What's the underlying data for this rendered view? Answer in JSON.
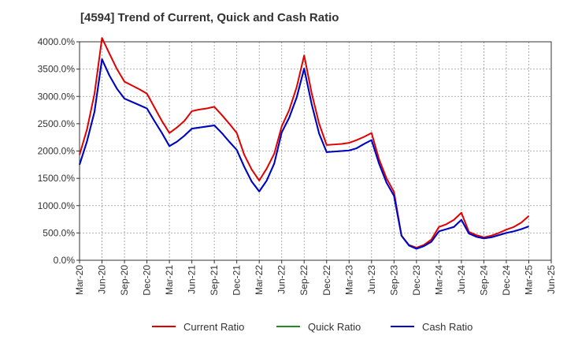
{
  "chart_data": {
    "type": "line",
    "title": "[4594]  Trend of Current, Quick and Cash Ratio",
    "xlabel": "",
    "ylabel": "",
    "ylim": [
      0,
      4000
    ],
    "y_ticks": [
      0,
      500,
      1000,
      1500,
      2000,
      2500,
      3000,
      3500,
      4000
    ],
    "y_tick_labels": [
      "0.0%",
      "500.0%",
      "1000.0%",
      "1500.0%",
      "2000.0%",
      "2500.0%",
      "3000.0%",
      "3500.0%",
      "4000.0%"
    ],
    "x_tick_labels": [
      "Mar-20",
      "Jun-20",
      "Sep-20",
      "Dec-20",
      "Mar-21",
      "Jun-21",
      "Sep-21",
      "Dec-21",
      "Mar-22",
      "Jun-22",
      "Sep-22",
      "Dec-22",
      "Mar-23",
      "Jun-23",
      "Sep-23",
      "Dec-23",
      "Mar-24",
      "Jun-24",
      "Sep-24",
      "Dec-24",
      "Mar-25",
      "Jun-25"
    ],
    "x_months": [
      "2020-03",
      "2020-04",
      "2020-05",
      "2020-06",
      "2020-07",
      "2020-08",
      "2020-09",
      "2020-10",
      "2020-11",
      "2020-12",
      "2021-01",
      "2021-02",
      "2021-03",
      "2021-04",
      "2021-05",
      "2021-06",
      "2021-07",
      "2021-08",
      "2021-09",
      "2021-10",
      "2021-11",
      "2021-12",
      "2022-01",
      "2022-02",
      "2022-03",
      "2022-04",
      "2022-05",
      "2022-06",
      "2022-07",
      "2022-08",
      "2022-09",
      "2022-10",
      "2022-11",
      "2022-12",
      "2023-01",
      "2023-02",
      "2023-03",
      "2023-04",
      "2023-05",
      "2023-06",
      "2023-07",
      "2023-08",
      "2023-09",
      "2023-10",
      "2023-11",
      "2023-12",
      "2024-01",
      "2024-02",
      "2024-03",
      "2024-04",
      "2024-05",
      "2024-06",
      "2024-07",
      "2024-08",
      "2024-09",
      "2024-10",
      "2024-11",
      "2024-12",
      "2025-01",
      "2025-02",
      "2025-03"
    ],
    "grid": true,
    "legend_position": "bottom",
    "series": [
      {
        "name": "Current Ratio",
        "color": "#e00000",
        "values": [
          1930,
          2400,
          3050,
          4070,
          3780,
          3500,
          3270,
          3200,
          3130,
          3050,
          2800,
          2550,
          2330,
          2430,
          2550,
          2730,
          2760,
          2780,
          2810,
          2660,
          2500,
          2330,
          1930,
          1660,
          1460,
          1680,
          1950,
          2450,
          2750,
          3170,
          3750,
          3060,
          2500,
          2110,
          2120,
          2130,
          2150,
          2200,
          2260,
          2330,
          1850,
          1500,
          1250,
          450,
          280,
          230,
          280,
          380,
          610,
          660,
          740,
          870,
          520,
          460,
          420,
          450,
          500,
          560,
          610,
          690,
          810
        ]
      },
      {
        "name": "Quick Ratio",
        "color": "#228b22",
        "values": [
          1750,
          2180,
          2720,
          3680,
          3380,
          3140,
          2960,
          2900,
          2840,
          2780,
          2550,
          2330,
          2090,
          2170,
          2280,
          2410,
          2430,
          2450,
          2470,
          2330,
          2170,
          2020,
          1710,
          1440,
          1260,
          1460,
          1770,
          2340,
          2610,
          2980,
          3510,
          2860,
          2320,
          1980,
          1990,
          2000,
          2010,
          2050,
          2130,
          2200,
          1770,
          1420,
          1180,
          450,
          270,
          210,
          260,
          340,
          530,
          570,
          610,
          740,
          490,
          430,
          400,
          420,
          460,
          500,
          530,
          570,
          620
        ]
      },
      {
        "name": "Cash Ratio",
        "color": "#0000cc",
        "values": [
          1750,
          2180,
          2720,
          3680,
          3380,
          3140,
          2960,
          2900,
          2840,
          2780,
          2550,
          2330,
          2090,
          2170,
          2280,
          2410,
          2430,
          2450,
          2470,
          2330,
          2170,
          2020,
          1710,
          1440,
          1260,
          1460,
          1770,
          2340,
          2610,
          2980,
          3510,
          2860,
          2320,
          1980,
          1990,
          2000,
          2010,
          2050,
          2130,
          2200,
          1770,
          1420,
          1180,
          450,
          270,
          210,
          260,
          340,
          530,
          570,
          610,
          740,
          490,
          430,
          400,
          420,
          460,
          500,
          530,
          570,
          620
        ]
      }
    ]
  }
}
